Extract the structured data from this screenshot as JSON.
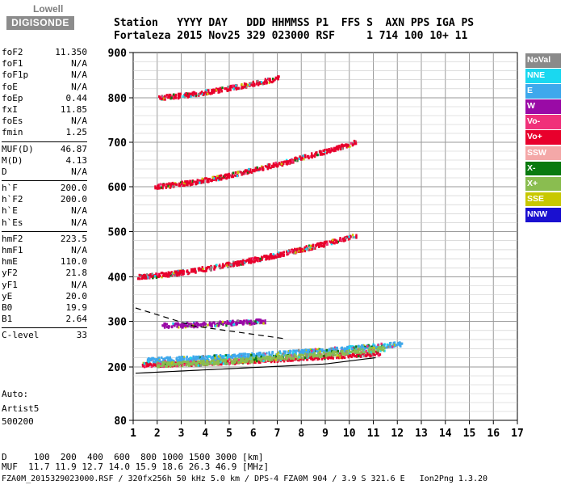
{
  "logo": {
    "line1": "Lowell",
    "line2": "DIGISONDE"
  },
  "header": {
    "row1": "Station   YYYY DAY   DDD HHMMSS P1  FFS S  AXN PPS IGA PS",
    "row2": "Fortaleza 2015 Nov25 329 023000 RSF     1 714 100 10+ 11"
  },
  "params": [
    {
      "name": "foF2",
      "value": "11.350"
    },
    {
      "name": "foF1",
      "value": "N/A"
    },
    {
      "name": "foF1p",
      "value": "N/A"
    },
    {
      "name": "foE",
      "value": "N/A"
    },
    {
      "name": "foEp",
      "value": "0.44"
    },
    {
      "name": "fxI",
      "value": "11.85"
    },
    {
      "name": "foEs",
      "value": "N/A"
    },
    {
      "name": "fmin",
      "value": "1.25"
    },
    {
      "sep": true
    },
    {
      "name": "MUF(D)",
      "value": "46.87"
    },
    {
      "name": "M(D)",
      "value": "4.13"
    },
    {
      "name": "D",
      "value": "N/A"
    },
    {
      "sep": true
    },
    {
      "name": "h`F",
      "value": "200.0"
    },
    {
      "name": "h`F2",
      "value": "200.0"
    },
    {
      "name": "h`E",
      "value": "N/A"
    },
    {
      "name": "h`Es",
      "value": "N/A"
    },
    {
      "sep": true
    },
    {
      "name": "hmF2",
      "value": "223.5"
    },
    {
      "name": "hmF1",
      "value": "N/A"
    },
    {
      "name": "hmE",
      "value": "110.0"
    },
    {
      "name": "yF2",
      "value": "21.8"
    },
    {
      "name": "yF1",
      "value": "N/A"
    },
    {
      "name": "yE",
      "value": "20.0"
    },
    {
      "name": "B0",
      "value": "19.9"
    },
    {
      "name": "B1",
      "value": "2.64"
    },
    {
      "sep": true
    },
    {
      "name": "C-level",
      "value": "33"
    }
  ],
  "info": {
    "auto": "Auto:",
    "artist": "Artist5",
    "version": "500200"
  },
  "legend": [
    {
      "label": "NoVal",
      "color": "#8a8a8a"
    },
    {
      "label": "NNE",
      "color": "#1ad8f0"
    },
    {
      "label": "E",
      "color": "#3ea8ec"
    },
    {
      "label": "W",
      "color": "#9a0aa6"
    },
    {
      "label": "Vo-",
      "color": "#f0307a"
    },
    {
      "label": "Vo+",
      "color": "#e8002c"
    },
    {
      "label": "SSW",
      "color": "#f4a8a8"
    },
    {
      "label": "X-",
      "color": "#0a7a10"
    },
    {
      "label": "X+",
      "color": "#8abd50"
    },
    {
      "label": "SSE",
      "color": "#c8c800"
    },
    {
      "label": "NNW",
      "color": "#1a10d0"
    }
  ],
  "footer": {
    "line1": "D     100  200  400  600  800 1000 1500 3000 [km]",
    "line2": "MUF  11.7 11.9 12.7 14.0 15.9 18.6 26.3 46.9 [MHz]",
    "line3": "FZA0M_2015329023000.RSF / 320fx256h 50 kHz 5.0 km / DPS-4 FZA0M 904 / 3.9 S 321.6 E   Ion2Png 1.3.20"
  },
  "chart_data": {
    "type": "scatter",
    "title": "",
    "xlabel": "",
    "ylabel": "",
    "xlim": [
      1,
      17
    ],
    "ylim": [
      80,
      900
    ],
    "x_ticks": [
      1,
      2,
      3,
      4,
      5,
      6,
      7,
      8,
      9,
      10,
      11,
      12,
      13,
      14,
      15,
      16,
      17
    ],
    "y_ticks": [
      80,
      200,
      300,
      400,
      500,
      600,
      700,
      800,
      900
    ],
    "grid": true,
    "y_scale": "custom-ionogram",
    "series": [
      {
        "name": "Vo+",
        "color": "#e8002c",
        "traces": [
          {
            "x0": 1.4,
            "x1": 11.3,
            "h0": 205,
            "h1": 230
          },
          {
            "x0": 1.2,
            "x1": 10.3,
            "h0": 400,
            "h1": 490
          },
          {
            "x0": 1.9,
            "x1": 10.3,
            "h0": 600,
            "h1": 700
          },
          {
            "x0": 2.0,
            "x1": 7.1,
            "h0": 800,
            "h1": 843
          }
        ]
      },
      {
        "name": "E",
        "color": "#3ea8ec",
        "traces": [
          {
            "x0": 1.6,
            "x1": 12.2,
            "h0": 215,
            "h1": 250
          }
        ]
      },
      {
        "name": "W",
        "color": "#9a0aa6",
        "traces": [
          {
            "x0": 2.2,
            "x1": 6.5,
            "h0": 290,
            "h1": 300
          }
        ]
      },
      {
        "name": "X+",
        "color": "#8abd50",
        "traces": [
          {
            "x0": 2.0,
            "x1": 11.5,
            "h0": 205,
            "h1": 240
          }
        ]
      }
    ]
  }
}
